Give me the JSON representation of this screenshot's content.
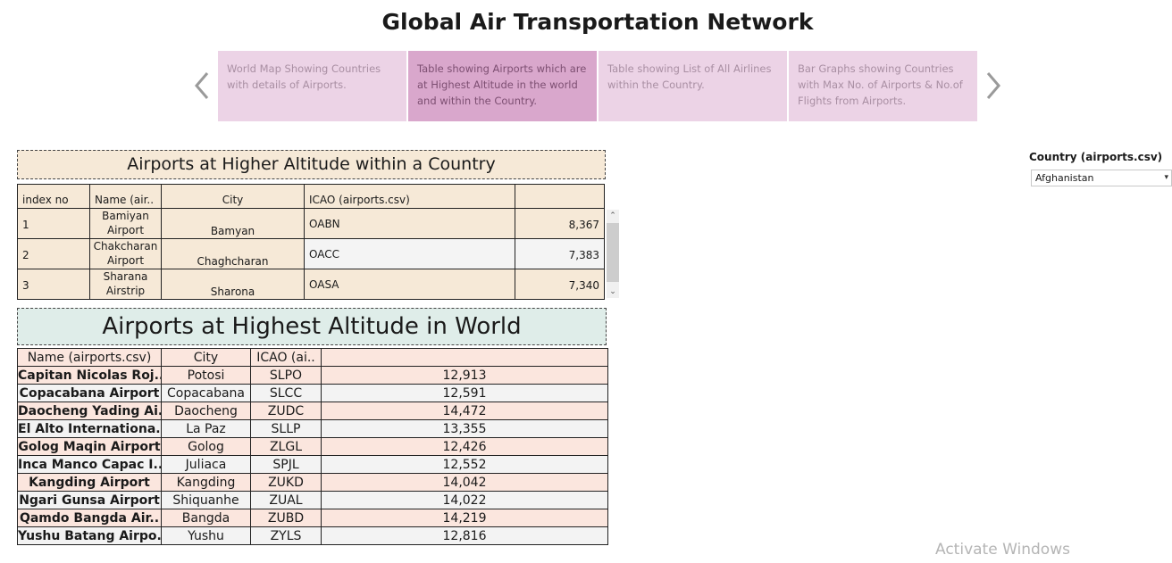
{
  "page_title": "Global Air Transportation Network",
  "story": {
    "cards": [
      {
        "text": "World Map Showing Countries with details of Airports."
      },
      {
        "text": "Table showing Airports which are at Highest Altitude  in the world and within the Country."
      },
      {
        "text": "Table showing List of All Airlines within the Country."
      },
      {
        "text": "Bar Graphs showing Countries with Max No. of Airports & No.of Flights from Airports."
      }
    ],
    "prev_icon": "chevron-left-icon",
    "next_icon": "chevron-right-icon"
  },
  "filter": {
    "label": "Country (airports.csv)",
    "value": "Afghanistan",
    "caret": "▾"
  },
  "section1": {
    "title": "Airports at Higher Altitude within a Country",
    "headers": [
      "index no",
      "Name (air..",
      "City",
      "ICAO (airports.csv)",
      ""
    ],
    "rows": [
      {
        "index": "1",
        "name": "Bamiyan Airport",
        "city": "Bamyan",
        "icao": "OABN",
        "altitude": "8,367"
      },
      {
        "index": "2",
        "name": "Chakcharan Airport",
        "city": "Chaghcharan",
        "icao": "OACC",
        "altitude": "7,383"
      },
      {
        "index": "3",
        "name": "Sharana Airstrip",
        "city": "Sharona",
        "icao": "OASA",
        "altitude": "7,340"
      }
    ],
    "scroll_up": "⌃",
    "scroll_down": "⌄"
  },
  "section2": {
    "title": "Airports at Highest Altitude in World",
    "headers": [
      "Name (airports.csv)",
      "City",
      "ICAO (ai..",
      ""
    ],
    "rows": [
      {
        "name": "Capitan Nicolas Roj..",
        "city": "Potosi",
        "icao": "SLPO",
        "altitude": "12,913"
      },
      {
        "name": "Copacabana Airport",
        "city": "Copacabana",
        "icao": "SLCC",
        "altitude": "12,591"
      },
      {
        "name": "Daocheng Yading Ai..",
        "city": "Daocheng",
        "icao": "ZUDC",
        "altitude": "14,472"
      },
      {
        "name": "El Alto Internationa..",
        "city": "La Paz",
        "icao": "SLLP",
        "altitude": "13,355"
      },
      {
        "name": "Golog Maqin Airport",
        "city": "Golog",
        "icao": "ZLGL",
        "altitude": "12,426"
      },
      {
        "name": "Inca Manco Capac I..",
        "city": "Juliaca",
        "icao": "SPJL",
        "altitude": "12,552"
      },
      {
        "name": "Kangding Airport",
        "city": "Kangding",
        "icao": "ZUKD",
        "altitude": "14,042"
      },
      {
        "name": "Ngari Gunsa Airport",
        "city": "Shiquanhe",
        "icao": "ZUAL",
        "altitude": "14,022"
      },
      {
        "name": "Qamdo Bangda Air..",
        "city": "Bangda",
        "icao": "ZUBD",
        "altitude": "14,219"
      },
      {
        "name": "Yushu Batang Airpo..",
        "city": "Yushu",
        "icao": "ZYLS",
        "altitude": "12,816"
      }
    ]
  },
  "watermark": "Activate Windows"
}
